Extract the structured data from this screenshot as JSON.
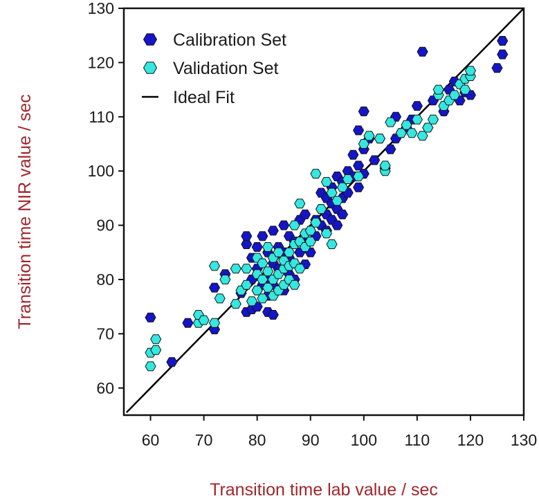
{
  "chart_data": {
    "type": "scatter",
    "title": "",
    "xlabel": "Transition time lab value / sec",
    "ylabel": "Transition time NIR value / sec",
    "xlim": [
      55,
      130
    ],
    "ylim": [
      55,
      130
    ],
    "xticks": [
      60,
      70,
      80,
      90,
      100,
      110,
      120,
      130
    ],
    "yticks": [
      60,
      70,
      80,
      90,
      100,
      110,
      120,
      130
    ],
    "grid": false,
    "legend_position": "top-left",
    "series": [
      {
        "name": "Calibration Set",
        "color": "#1515c8",
        "marker": "hexagon",
        "points": [
          [
            60,
            73
          ],
          [
            64,
            64.8
          ],
          [
            67,
            72
          ],
          [
            72,
            70.8
          ],
          [
            72,
            78.5
          ],
          [
            74,
            81
          ],
          [
            77,
            77.5
          ],
          [
            78,
            74
          ],
          [
            78,
            86.5
          ],
          [
            78,
            88
          ],
          [
            79,
            74.5
          ],
          [
            79,
            80
          ],
          [
            79,
            84
          ],
          [
            80,
            75
          ],
          [
            80,
            78
          ],
          [
            80,
            82
          ],
          [
            80,
            86
          ],
          [
            81,
            79
          ],
          [
            81,
            88
          ],
          [
            82,
            74
          ],
          [
            82,
            77
          ],
          [
            82,
            80
          ],
          [
            82,
            85
          ],
          [
            83,
            73.5
          ],
          [
            83,
            79
          ],
          [
            83,
            83
          ],
          [
            83,
            89
          ],
          [
            84,
            82
          ],
          [
            84,
            86
          ],
          [
            85,
            78
          ],
          [
            85,
            85
          ],
          [
            85,
            90
          ],
          [
            86,
            81
          ],
          [
            86,
            84
          ],
          [
            86,
            88
          ],
          [
            87,
            80
          ],
          [
            87,
            83
          ],
          [
            87,
            87
          ],
          [
            88,
            85
          ],
          [
            88,
            91
          ],
          [
            89,
            82.8
          ],
          [
            89,
            87
          ],
          [
            89,
            92
          ],
          [
            90,
            85
          ],
          [
            90,
            89
          ],
          [
            91,
            88
          ],
          [
            91,
            91
          ],
          [
            92,
            90
          ],
          [
            92,
            93
          ],
          [
            92,
            96
          ],
          [
            93,
            89
          ],
          [
            93,
            92
          ],
          [
            93,
            95
          ],
          [
            94,
            91
          ],
          [
            94,
            94
          ],
          [
            94,
            97
          ],
          [
            95,
            90
          ],
          [
            95,
            93
          ],
          [
            95,
            99
          ],
          [
            96,
            92
          ],
          [
            96,
            95
          ],
          [
            96,
            98
          ],
          [
            97,
            96
          ],
          [
            97,
            100
          ],
          [
            98,
            99
          ],
          [
            98,
            103
          ],
          [
            99,
            97
          ],
          [
            99,
            101
          ],
          [
            99,
            107.5
          ],
          [
            100,
            99.5
          ],
          [
            100,
            104
          ],
          [
            100,
            111
          ],
          [
            101,
            106
          ],
          [
            102,
            102
          ],
          [
            103,
            106
          ],
          [
            104,
            100.5
          ],
          [
            105,
            104
          ],
          [
            106,
            106
          ],
          [
            106,
            110
          ],
          [
            107,
            107
          ],
          [
            108,
            108
          ],
          [
            109,
            109.5
          ],
          [
            110,
            112
          ],
          [
            111,
            122
          ],
          [
            112,
            108
          ],
          [
            113,
            113
          ],
          [
            115,
            111
          ],
          [
            116,
            115
          ],
          [
            117,
            116.5
          ],
          [
            118,
            113
          ],
          [
            119,
            114.5
          ],
          [
            120,
            114
          ],
          [
            125,
            119
          ],
          [
            126,
            121.5
          ],
          [
            126,
            124
          ]
        ]
      },
      {
        "name": "Validation Set",
        "color": "#33e8e0",
        "marker": "hexagon",
        "points": [
          [
            60,
            64
          ],
          [
            60,
            66.5
          ],
          [
            61,
            67
          ],
          [
            61,
            69
          ],
          [
            69,
            72
          ],
          [
            69,
            73.5
          ],
          [
            70,
            72.5
          ],
          [
            72,
            72
          ],
          [
            72,
            82.5
          ],
          [
            73,
            76.5
          ],
          [
            74,
            80
          ],
          [
            76,
            75.5
          ],
          [
            76,
            82
          ],
          [
            77,
            78
          ],
          [
            78,
            79
          ],
          [
            78,
            82
          ],
          [
            79,
            76
          ],
          [
            80,
            78
          ],
          [
            80,
            81
          ],
          [
            80,
            84
          ],
          [
            81,
            76.5
          ],
          [
            81,
            80
          ],
          [
            81,
            83
          ],
          [
            82,
            78.5
          ],
          [
            82,
            81.5
          ],
          [
            82,
            86
          ],
          [
            83,
            77
          ],
          [
            83,
            80
          ],
          [
            83,
            84
          ],
          [
            84,
            78
          ],
          [
            84,
            81
          ],
          [
            84,
            85
          ],
          [
            85,
            79
          ],
          [
            85,
            82
          ],
          [
            85,
            83.5
          ],
          [
            86,
            80
          ],
          [
            86,
            82.5
          ],
          [
            86,
            85
          ],
          [
            87,
            79
          ],
          [
            87,
            83
          ],
          [
            87,
            86.5
          ],
          [
            87,
            90
          ],
          [
            88,
            82
          ],
          [
            88,
            87
          ],
          [
            88,
            94
          ],
          [
            89,
            86
          ],
          [
            89,
            88.5
          ],
          [
            90,
            87
          ],
          [
            90,
            89
          ],
          [
            91,
            90.5
          ],
          [
            91,
            99.5
          ],
          [
            92,
            93
          ],
          [
            93,
            88.5
          ],
          [
            93,
            98
          ],
          [
            94,
            86.5
          ],
          [
            94,
            96
          ],
          [
            95,
            94.5
          ],
          [
            96,
            97
          ],
          [
            97,
            98.5
          ],
          [
            99,
            99
          ],
          [
            100,
            105
          ],
          [
            101,
            106.5
          ],
          [
            103,
            106
          ],
          [
            104,
            100
          ],
          [
            104,
            101
          ],
          [
            105,
            109
          ],
          [
            107,
            107
          ],
          [
            108,
            108.5
          ],
          [
            109,
            107
          ],
          [
            110,
            109.5
          ],
          [
            111,
            106.5
          ],
          [
            112,
            108
          ],
          [
            113,
            109.5
          ],
          [
            114,
            114
          ],
          [
            114,
            115
          ],
          [
            115,
            112
          ],
          [
            116,
            113
          ],
          [
            117,
            114
          ],
          [
            118,
            116
          ],
          [
            119,
            115
          ],
          [
            119,
            117
          ],
          [
            120,
            117.5
          ],
          [
            120,
            118.5
          ]
        ]
      }
    ],
    "reference_line": {
      "name": "Ideal Fit",
      "color": "#000000",
      "from": [
        55.5,
        55.5
      ],
      "to": [
        130,
        130
      ]
    }
  }
}
